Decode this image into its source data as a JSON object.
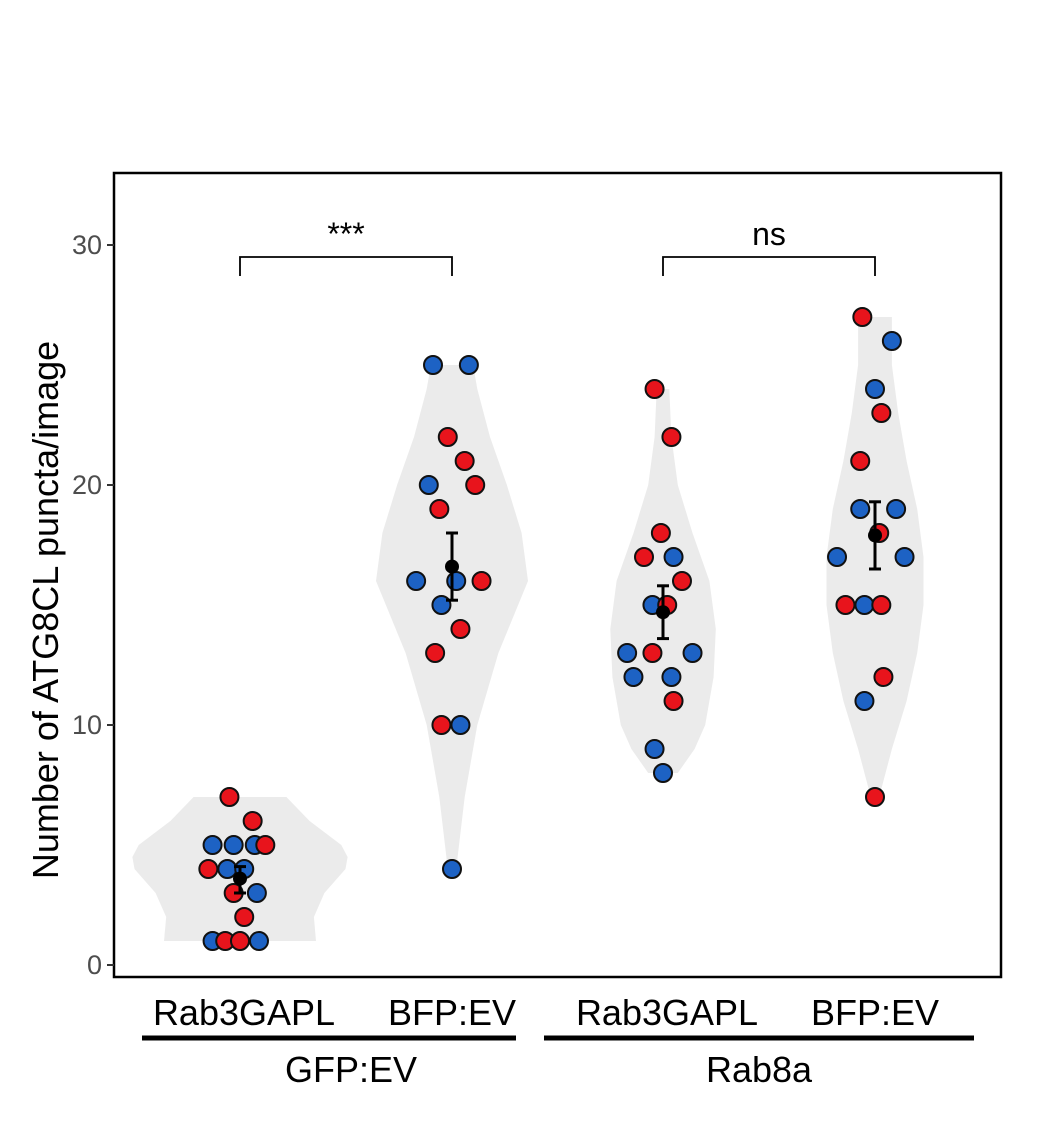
{
  "chart_data": {
    "type": "scatter",
    "subtype": "violin-dotplot",
    "ylabel": "Number of ATG8CL puncta/image",
    "ylim": [
      -0.5,
      33
    ],
    "yticks": [
      0,
      10,
      20,
      30
    ],
    "grid": false,
    "colors": {
      "red": "#e8141c",
      "blue": "#1d62c4",
      "violin": "#ebebeb",
      "mean": "#000000"
    },
    "categories": [
      "Rab3GAPL",
      "BFP:EV",
      "Rab3GAPL",
      "BFP:EV"
    ],
    "groups": [
      {
        "label": "GFP:EV",
        "categories": [
          0,
          1
        ]
      },
      {
        "label": "Rab8a",
        "categories": [
          2,
          3
        ]
      }
    ],
    "significance": [
      {
        "from": 0,
        "to": 1,
        "label": "***",
        "y": 29.5
      },
      {
        "from": 2,
        "to": 3,
        "label": "ns",
        "y": 29.5
      }
    ],
    "series": [
      {
        "category": "Rab3GAPL",
        "group": "GFP:EV",
        "mean": 3.6,
        "err_low": 3.0,
        "err_high": 4.1,
        "violin": {
          "ymin": 1,
          "ymax": 7,
          "profile": [
            [
              1,
              0.36
            ],
            [
              2,
              0.35
            ],
            [
              3,
              0.4
            ],
            [
              4,
              0.5
            ],
            [
              4.5,
              0.51
            ],
            [
              5,
              0.48
            ],
            [
              6,
              0.33
            ],
            [
              7,
              0.22
            ]
          ]
        },
        "points": [
          {
            "y": 7,
            "color": "red",
            "dx": -0.05
          },
          {
            "y": 6,
            "color": "red",
            "dx": 0.06
          },
          {
            "y": 5,
            "color": "blue",
            "dx": -0.13
          },
          {
            "y": 5,
            "color": "blue",
            "dx": -0.03
          },
          {
            "y": 5,
            "color": "blue",
            "dx": 0.07
          },
          {
            "y": 5,
            "color": "red",
            "dx": 0.12
          },
          {
            "y": 4,
            "color": "red",
            "dx": -0.15
          },
          {
            "y": 4,
            "color": "blue",
            "dx": -0.06
          },
          {
            "y": 4,
            "color": "blue",
            "dx": 0.02
          },
          {
            "y": 3,
            "color": "red",
            "dx": -0.03
          },
          {
            "y": 3,
            "color": "blue",
            "dx": 0.08
          },
          {
            "y": 2,
            "color": "red",
            "dx": 0.02
          },
          {
            "y": 1,
            "color": "blue",
            "dx": -0.13
          },
          {
            "y": 1,
            "color": "red",
            "dx": -0.07
          },
          {
            "y": 1,
            "color": "red",
            "dx": 0.0
          },
          {
            "y": 1,
            "color": "blue",
            "dx": 0.09
          }
        ]
      },
      {
        "category": "BFP:EV",
        "group": "GFP:EV",
        "mean": 16.6,
        "err_low": 15.2,
        "err_high": 18.0,
        "violin": {
          "ymin": 4,
          "ymax": 25,
          "profile": [
            [
              4,
              0.02
            ],
            [
              7,
              0.06
            ],
            [
              10,
              0.12
            ],
            [
              13,
              0.22
            ],
            [
              16,
              0.36
            ],
            [
              18,
              0.33
            ],
            [
              20,
              0.26
            ],
            [
              22,
              0.18
            ],
            [
              24,
              0.12
            ],
            [
              25,
              0.1
            ]
          ]
        },
        "points": [
          {
            "y": 25,
            "color": "blue",
            "dx": -0.09
          },
          {
            "y": 25,
            "color": "blue",
            "dx": 0.08
          },
          {
            "y": 22,
            "color": "red",
            "dx": -0.02
          },
          {
            "y": 21,
            "color": "red",
            "dx": 0.06
          },
          {
            "y": 20,
            "color": "blue",
            "dx": -0.11
          },
          {
            "y": 20,
            "color": "red",
            "dx": 0.11
          },
          {
            "y": 19,
            "color": "red",
            "dx": -0.06
          },
          {
            "y": 16,
            "color": "blue",
            "dx": -0.17
          },
          {
            "y": 16,
            "color": "blue",
            "dx": 0.02
          },
          {
            "y": 16,
            "color": "red",
            "dx": 0.14
          },
          {
            "y": 15,
            "color": "blue",
            "dx": -0.05
          },
          {
            "y": 14,
            "color": "red",
            "dx": 0.04
          },
          {
            "y": 13,
            "color": "red",
            "dx": -0.08
          },
          {
            "y": 10,
            "color": "red",
            "dx": -0.05
          },
          {
            "y": 10,
            "color": "blue",
            "dx": 0.04
          },
          {
            "y": 4,
            "color": "blue",
            "dx": 0.0
          }
        ]
      },
      {
        "category": "Rab3GAPL",
        "group": "Rab8a",
        "mean": 14.7,
        "err_low": 13.6,
        "err_high": 15.8,
        "violin": {
          "ymin": 8,
          "ymax": 24,
          "profile": [
            [
              8,
              0.07
            ],
            [
              9,
              0.15
            ],
            [
              10,
              0.2
            ],
            [
              12,
              0.24
            ],
            [
              14,
              0.25
            ],
            [
              16,
              0.22
            ],
            [
              18,
              0.14
            ],
            [
              20,
              0.07
            ],
            [
              22,
              0.04
            ],
            [
              24,
              0.03
            ]
          ]
        },
        "points": [
          {
            "y": 24,
            "color": "red",
            "dx": -0.04
          },
          {
            "y": 22,
            "color": "red",
            "dx": 0.04
          },
          {
            "y": 18,
            "color": "red",
            "dx": -0.01
          },
          {
            "y": 17,
            "color": "red",
            "dx": -0.09
          },
          {
            "y": 17,
            "color": "blue",
            "dx": 0.05
          },
          {
            "y": 16,
            "color": "red",
            "dx": 0.09
          },
          {
            "y": 15,
            "color": "blue",
            "dx": -0.05
          },
          {
            "y": 15,
            "color": "red",
            "dx": 0.02
          },
          {
            "y": 13,
            "color": "blue",
            "dx": -0.17
          },
          {
            "y": 13,
            "color": "red",
            "dx": -0.05
          },
          {
            "y": 13,
            "color": "blue",
            "dx": 0.14
          },
          {
            "y": 12,
            "color": "blue",
            "dx": -0.14
          },
          {
            "y": 12,
            "color": "blue",
            "dx": 0.04
          },
          {
            "y": 11,
            "color": "red",
            "dx": 0.05
          },
          {
            "y": 9,
            "color": "blue",
            "dx": -0.04
          },
          {
            "y": 8,
            "color": "blue",
            "dx": 0.0
          }
        ]
      },
      {
        "category": "BFP:EV",
        "group": "Rab8a",
        "mean": 17.9,
        "err_low": 16.5,
        "err_high": 19.3,
        "violin": {
          "ymin": 7,
          "ymax": 27,
          "profile": [
            [
              7,
              0.02
            ],
            [
              9,
              0.08
            ],
            [
              11,
              0.15
            ],
            [
              13,
              0.2
            ],
            [
              15,
              0.23
            ],
            [
              17,
              0.23
            ],
            [
              19,
              0.2
            ],
            [
              21,
              0.15
            ],
            [
              23,
              0.11
            ],
            [
              25,
              0.08
            ],
            [
              27,
              0.08
            ]
          ]
        },
        "points": [
          {
            "y": 27,
            "color": "red",
            "dx": -0.06
          },
          {
            "y": 26,
            "color": "blue",
            "dx": 0.08
          },
          {
            "y": 24,
            "color": "blue",
            "dx": 0.0
          },
          {
            "y": 23,
            "color": "red",
            "dx": 0.03
          },
          {
            "y": 21,
            "color": "red",
            "dx": -0.07
          },
          {
            "y": 19,
            "color": "blue",
            "dx": -0.07
          },
          {
            "y": 19,
            "color": "blue",
            "dx": 0.1
          },
          {
            "y": 18,
            "color": "red",
            "dx": 0.02
          },
          {
            "y": 17,
            "color": "blue",
            "dx": -0.18
          },
          {
            "y": 17,
            "color": "blue",
            "dx": 0.14
          },
          {
            "y": 15,
            "color": "red",
            "dx": -0.14
          },
          {
            "y": 15,
            "color": "blue",
            "dx": -0.05
          },
          {
            "y": 15,
            "color": "red",
            "dx": 0.03
          },
          {
            "y": 12,
            "color": "red",
            "dx": 0.04
          },
          {
            "y": 11,
            "color": "blue",
            "dx": -0.05
          },
          {
            "y": 7,
            "color": "red",
            "dx": 0.0
          }
        ]
      }
    ]
  }
}
